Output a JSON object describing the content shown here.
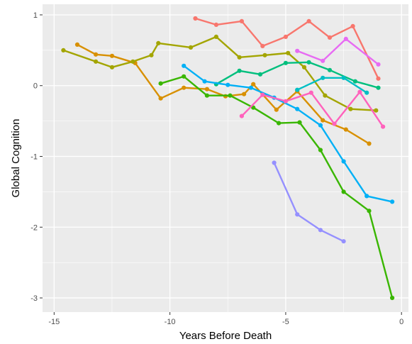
{
  "chart_data": {
    "type": "line",
    "title": "",
    "xlabel": "Years Before Death",
    "ylabel": "Global Cognition",
    "xlim": [
      -15.5,
      0.3
    ],
    "ylim": [
      -3.2,
      1.15
    ],
    "x_ticks": [
      -15,
      -10,
      -5,
      0
    ],
    "x_tick_labels": [
      "-15",
      "-10",
      "-5",
      "0"
    ],
    "y_ticks": [
      -3,
      -2,
      -1,
      0,
      1
    ],
    "y_tick_labels": [
      "-3",
      "-2",
      "-1",
      "0",
      "1"
    ],
    "grid": true,
    "legend": "none",
    "panel_background": "#ebebeb",
    "grid_color": "#ffffff",
    "series": [
      {
        "color": "#f8766d",
        "points": [
          [
            -8.9,
            0.95
          ],
          [
            -8.0,
            0.86
          ],
          [
            -6.9,
            0.91
          ],
          [
            -6.0,
            0.56
          ],
          [
            -5.0,
            0.69
          ],
          [
            -4.0,
            0.91
          ],
          [
            -3.1,
            0.68
          ],
          [
            -2.1,
            0.84
          ],
          [
            -1.0,
            0.1
          ]
        ]
      },
      {
        "color": "#d89000",
        "points": [
          [
            -14.0,
            0.58
          ],
          [
            -13.2,
            0.44
          ],
          [
            -12.5,
            0.42
          ],
          [
            -11.5,
            0.32
          ],
          [
            -10.4,
            -0.18
          ],
          [
            -9.4,
            -0.03
          ],
          [
            -8.4,
            -0.05
          ],
          [
            -7.6,
            -0.15
          ],
          [
            -6.8,
            -0.12
          ],
          [
            -6.4,
            0.02
          ],
          [
            -5.4,
            -0.34
          ],
          [
            -4.5,
            -0.08
          ],
          [
            -3.4,
            -0.49
          ],
          [
            -2.4,
            -0.62
          ],
          [
            -1.4,
            -0.82
          ]
        ]
      },
      {
        "color": "#a3a500",
        "points": [
          [
            -14.6,
            0.5
          ],
          [
            -13.2,
            0.34
          ],
          [
            -12.5,
            0.26
          ],
          [
            -11.6,
            0.34
          ],
          [
            -10.8,
            0.43
          ],
          [
            -10.5,
            0.6
          ],
          [
            -9.1,
            0.54
          ],
          [
            -8.0,
            0.69
          ],
          [
            -7.0,
            0.4
          ],
          [
            -5.9,
            0.43
          ],
          [
            -4.9,
            0.46
          ],
          [
            -4.2,
            0.26
          ],
          [
            -3.3,
            -0.14
          ],
          [
            -2.2,
            -0.33
          ],
          [
            -1.1,
            -0.35
          ]
        ]
      },
      {
        "color": "#39b600",
        "points": [
          [
            -10.4,
            0.03
          ],
          [
            -9.4,
            0.13
          ],
          [
            -8.4,
            -0.14
          ],
          [
            -7.4,
            -0.14
          ],
          [
            -6.4,
            -0.31
          ],
          [
            -5.3,
            -0.53
          ],
          [
            -4.4,
            -0.52
          ],
          [
            -3.5,
            -0.91
          ],
          [
            -2.5,
            -1.5
          ],
          [
            -1.4,
            -1.77
          ],
          [
            -0.4,
            -3.0
          ]
        ]
      },
      {
        "color": "#00bf7d",
        "points": [
          [
            -8.0,
            0.02
          ],
          [
            -7.0,
            0.21
          ],
          [
            -6.1,
            0.16
          ],
          [
            -5.0,
            0.32
          ],
          [
            -4.0,
            0.33
          ],
          [
            -3.1,
            0.22
          ],
          [
            -2.0,
            0.06
          ],
          [
            -1.0,
            -0.03
          ]
        ]
      },
      {
        "color": "#00bfc4",
        "points": [
          [
            -4.5,
            -0.06
          ],
          [
            -3.4,
            0.11
          ],
          [
            -2.5,
            0.11
          ],
          [
            -1.5,
            -0.1
          ]
        ]
      },
      {
        "color": "#00b0f6",
        "points": [
          [
            -9.4,
            0.28
          ],
          [
            -8.5,
            0.06
          ],
          [
            -7.5,
            0.01
          ],
          [
            -6.5,
            -0.03
          ],
          [
            -5.5,
            -0.17
          ],
          [
            -4.5,
            -0.33
          ],
          [
            -3.5,
            -0.56
          ],
          [
            -2.5,
            -1.07
          ],
          [
            -1.5,
            -1.56
          ],
          [
            -0.4,
            -1.64
          ]
        ]
      },
      {
        "color": "#9590ff",
        "points": [
          [
            -5.5,
            -1.09
          ],
          [
            -4.5,
            -1.82
          ],
          [
            -3.5,
            -2.04
          ],
          [
            -2.5,
            -2.2
          ]
        ]
      },
      {
        "color": "#e76bf3",
        "points": [
          [
            -4.5,
            0.49
          ],
          [
            -3.4,
            0.35
          ],
          [
            -2.4,
            0.66
          ],
          [
            -1.0,
            0.3
          ]
        ]
      },
      {
        "color": "#ff62bc",
        "points": [
          [
            -6.9,
            -0.43
          ],
          [
            -6.0,
            -0.13
          ],
          [
            -5.0,
            -0.22
          ],
          [
            -3.9,
            -0.1
          ],
          [
            -2.9,
            -0.54
          ],
          [
            -1.8,
            -0.09
          ],
          [
            -0.8,
            -0.58
          ]
        ]
      }
    ]
  }
}
